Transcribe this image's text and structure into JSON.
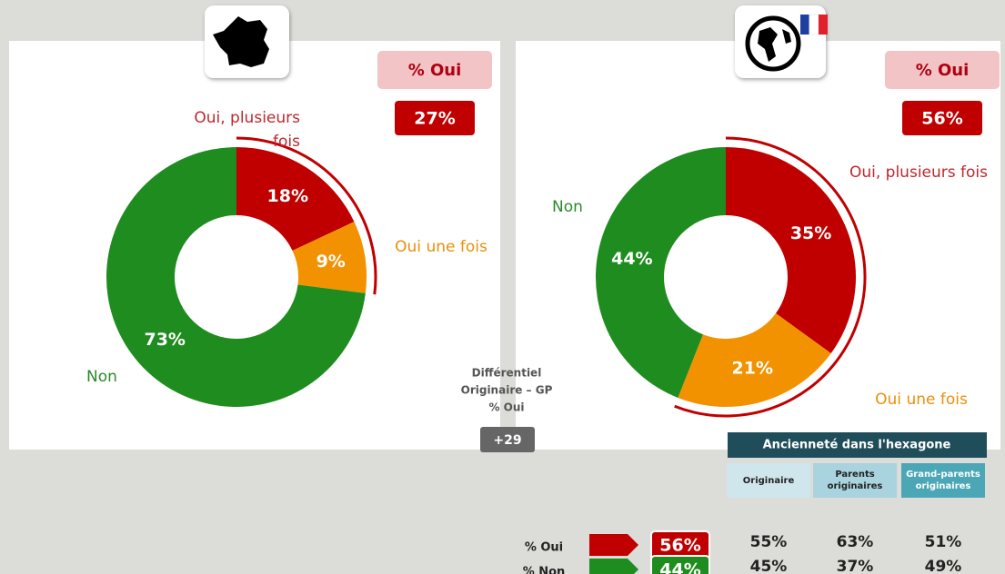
{
  "chart_data": [
    {
      "type": "pie",
      "categories": [
        "Oui, plusieurs fois",
        "Oui une fois",
        "Non"
      ],
      "values": [
        18,
        9,
        73
      ],
      "value_labels": [
        "18%",
        "9%",
        "73%"
      ],
      "colors": [
        "#c00000",
        "#f39200",
        "#1e8c1e"
      ],
      "badge_title": "% Oui",
      "badge": "27%"
    },
    {
      "type": "pie",
      "categories": [
        "Oui, plusieurs fois",
        "Oui une fois",
        "Non"
      ],
      "values": [
        35,
        21,
        44
      ],
      "value_labels": [
        "35%",
        "21%",
        "44%"
      ],
      "colors": [
        "#c00000",
        "#f39200",
        "#1e8c1e"
      ],
      "badge_title": "% Oui",
      "badge": "56%"
    }
  ],
  "differential": {
    "lines": [
      "Différentiel",
      "Originaire – GP",
      "% Oui"
    ],
    "value": "+29"
  },
  "table": {
    "title": "Ancienneté dans l'hexagone",
    "columns": [
      [
        "Originaire"
      ],
      [
        "Parents",
        "originaires"
      ],
      [
        "Grand-parents",
        "originaires"
      ]
    ],
    "rows": [
      {
        "label": "% Oui",
        "total": "56%",
        "cells": [
          "55%",
          "63%",
          "51%"
        ]
      },
      {
        "label": "% Non",
        "total": "44%",
        "cells": [
          "45%",
          "37%",
          "49%"
        ]
      }
    ]
  }
}
